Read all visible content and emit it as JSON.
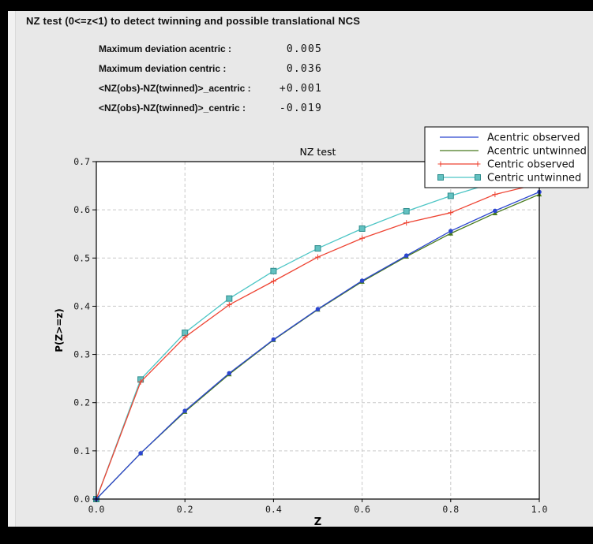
{
  "window": {
    "panel_bg": "#e8e8e8",
    "border_color": "#000000"
  },
  "header": {
    "title": "NZ test (0<=z<1) to detect twinning and possible translational NCS"
  },
  "stats": {
    "rows": [
      {
        "label": "Maximum deviation acentric :",
        "value": "0.005"
      },
      {
        "label": "Maximum deviation centric :",
        "value": "0.036"
      },
      {
        "label": "<NZ(obs)-NZ(twinned)>_acentric :",
        "value": "+0.001"
      },
      {
        "label": "<NZ(obs)-NZ(twinned)>_centric :",
        "value": "-0.019"
      }
    ]
  },
  "chart_data": {
    "type": "line",
    "title": "NZ test",
    "xlabel": "Z",
    "ylabel": "P(Z>=z)",
    "xlim": [
      0.0,
      1.0
    ],
    "ylim": [
      0.0,
      0.7
    ],
    "xticks": [
      0.0,
      0.2,
      0.4,
      0.6,
      0.8,
      1.0
    ],
    "yticks": [
      0.0,
      0.1,
      0.2,
      0.3,
      0.4,
      0.5,
      0.6,
      0.7
    ],
    "grid": true,
    "grid_color": "#c9c9c9",
    "plot_bg": "#ffffff",
    "axis_color": "#000000",
    "legend_position": "upper right",
    "x": [
      0.0,
      0.1,
      0.2,
      0.3,
      0.4,
      0.5,
      0.6,
      0.7,
      0.8,
      0.9,
      1.0
    ],
    "series": [
      {
        "name": "Acentric observed",
        "color": "#2b46cf",
        "marker": "circle",
        "legend_marker": false,
        "values": [
          0.0,
          0.095,
          0.183,
          0.261,
          0.331,
          0.394,
          0.453,
          0.505,
          0.556,
          0.598,
          0.637
        ]
      },
      {
        "name": "Acentric untwinned",
        "color": "#47791d",
        "marker": "triangle",
        "legend_marker": false,
        "values": [
          0.0,
          0.095,
          0.181,
          0.259,
          0.33,
          0.393,
          0.451,
          0.503,
          0.551,
          0.593,
          0.632
        ]
      },
      {
        "name": "Centric observed",
        "color": "#ee4433",
        "marker": "plus",
        "legend_marker": true,
        "values": [
          0.0,
          0.243,
          0.336,
          0.403,
          0.452,
          0.502,
          0.541,
          0.573,
          0.594,
          0.632,
          0.654
        ]
      },
      {
        "name": "Centric untwinned",
        "color": "#4cc5c5",
        "marker": "square",
        "legend_marker": true,
        "marker_fill": "#63c1c1",
        "marker_edge": "#2d8c8c",
        "values": [
          0.0,
          0.248,
          0.345,
          0.416,
          0.473,
          0.52,
          0.561,
          0.597,
          0.629,
          0.657,
          0.683
        ]
      }
    ]
  }
}
